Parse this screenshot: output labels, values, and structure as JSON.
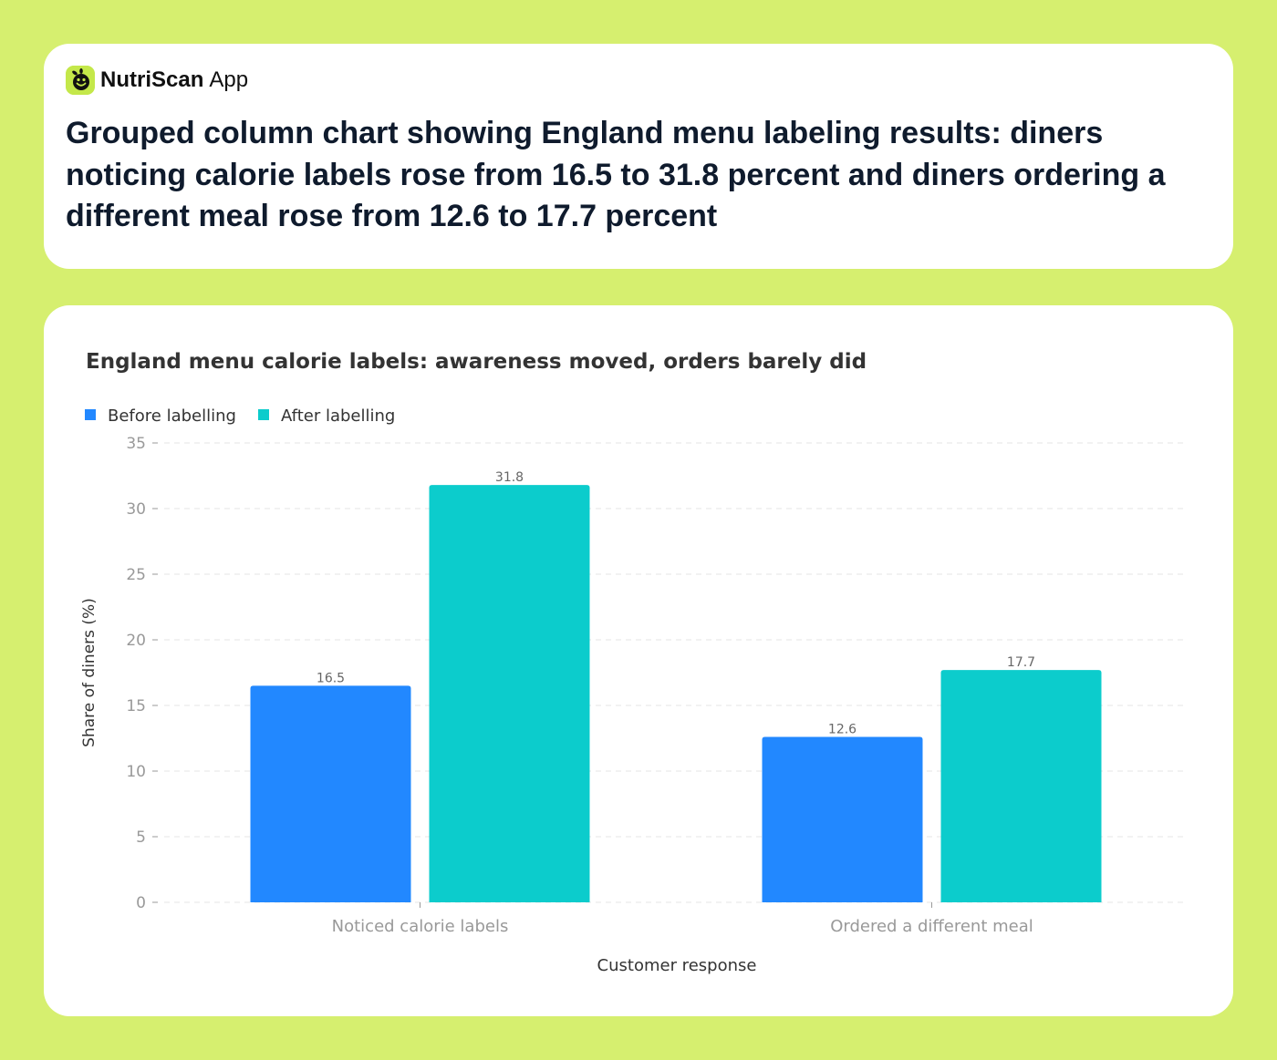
{
  "brand": {
    "name": "NutriScan",
    "suffix": "App",
    "logo_icon": "smiley-leaf-icon"
  },
  "headline": "Grouped column chart showing England menu labeling results: diners noticing calorie labels rose from 16.5 to 31.8 percent and diners ordering a different meal rose from 12.6 to 17.7 percent",
  "chart_data": {
    "type": "bar",
    "title": "England menu calorie labels: awareness moved, orders barely did",
    "xlabel": "Customer response",
    "ylabel": "Share of diners (%)",
    "ylim": [
      0,
      35
    ],
    "yticks": [
      0,
      5,
      10,
      15,
      20,
      25,
      30,
      35
    ],
    "grid": true,
    "legend_position": "top-left",
    "categories": [
      "Noticed calorie labels",
      "Ordered a different meal"
    ],
    "series": [
      {
        "name": "Before labelling",
        "color": "#2288ff",
        "values": [
          16.5,
          12.6
        ]
      },
      {
        "name": "After labelling",
        "color": "#0ccccc",
        "values": [
          31.8,
          17.7
        ]
      }
    ]
  }
}
